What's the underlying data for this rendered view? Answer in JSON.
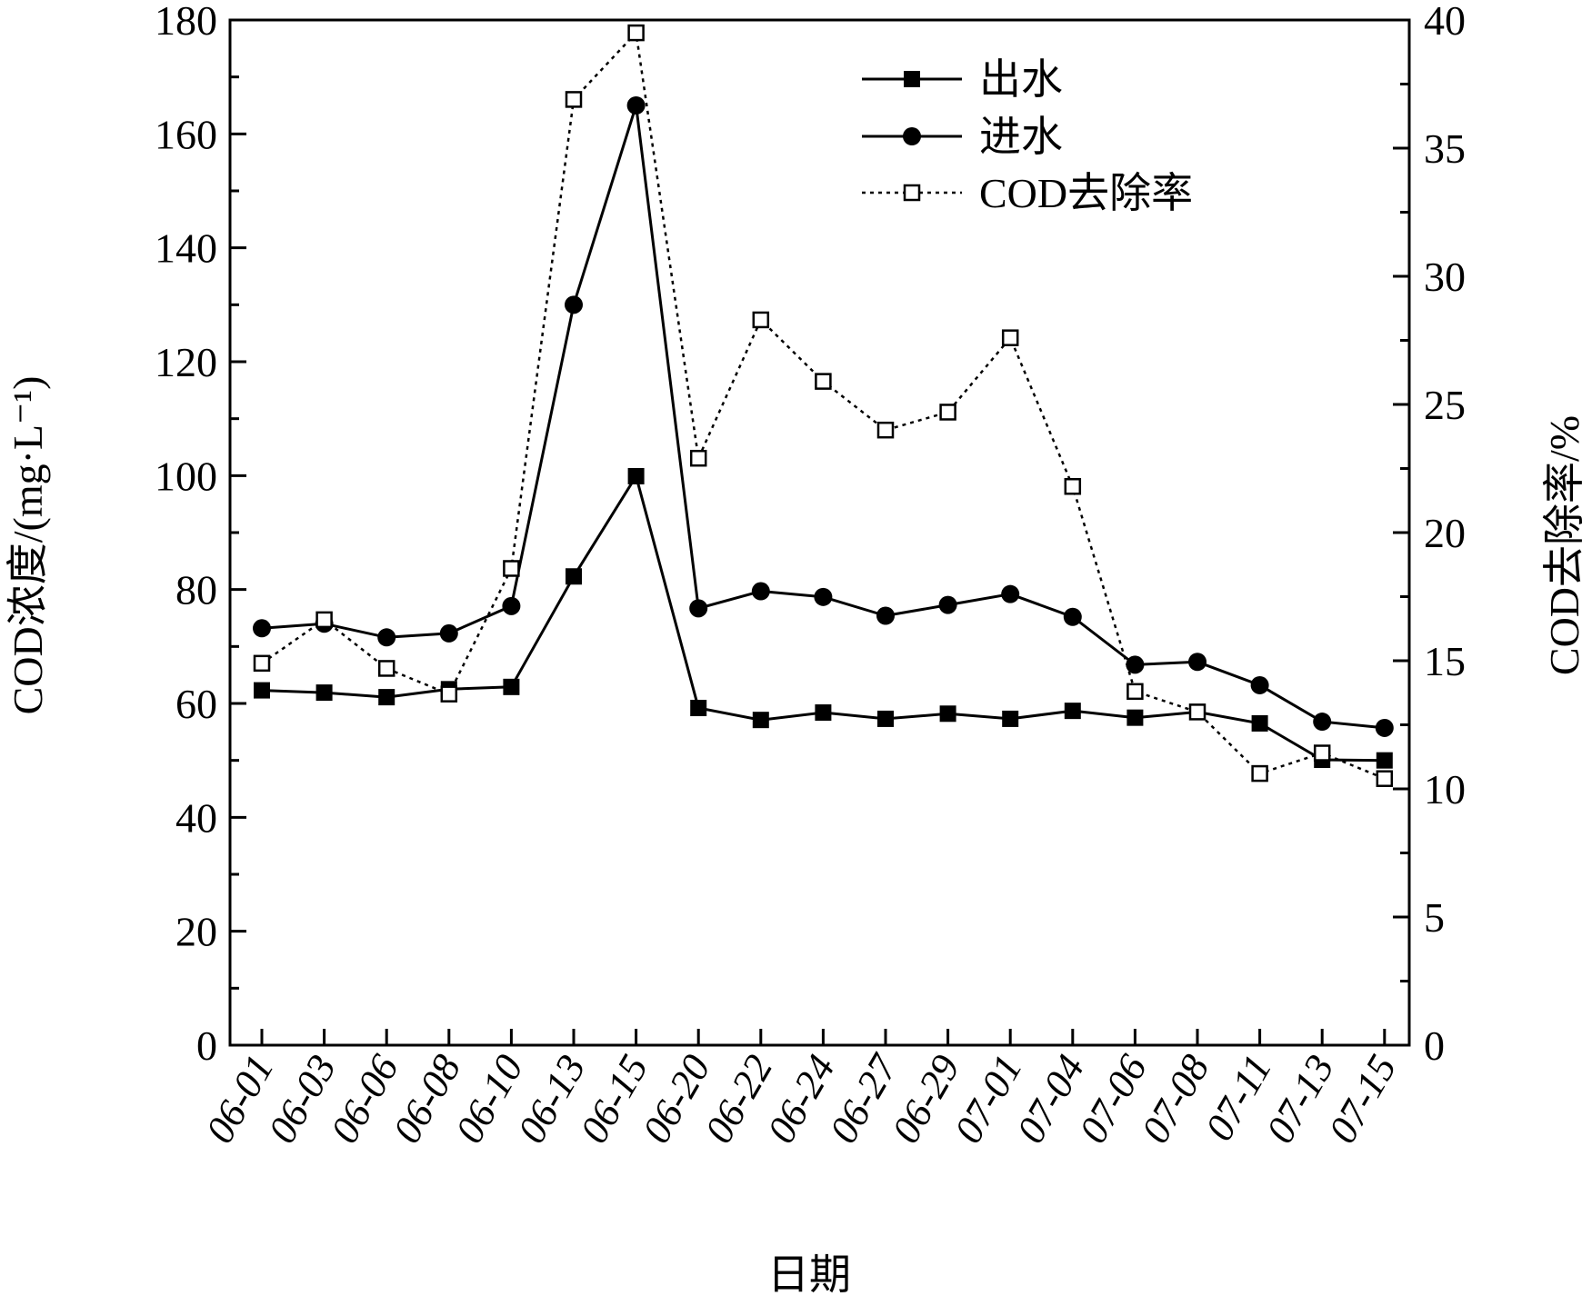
{
  "chart_data": {
    "type": "line",
    "title": "",
    "xlabel": "日期",
    "ylabel_left": "COD浓度/(mg·L⁻¹)",
    "ylabel_right": "COD去除率/%",
    "categories": [
      "06-01",
      "06-03",
      "06-06",
      "06-08",
      "06-10",
      "06-13",
      "06-15",
      "06-20",
      "06-22",
      "06-24",
      "06-27",
      "06-29",
      "07-01",
      "07-04",
      "07-06",
      "07-08",
      "07-11",
      "07-13",
      "07-15"
    ],
    "y_left": {
      "min": 0,
      "max": 180,
      "major_step": 20,
      "minor_step": 10,
      "tick_labels": [
        "0",
        "20",
        "40",
        "60",
        "80",
        "100",
        "120",
        "140",
        "160",
        "180"
      ]
    },
    "y_right": {
      "min": 0,
      "max": 40,
      "major_step": 5,
      "minor_step": 2.5,
      "tick_labels": [
        "0",
        "5",
        "10",
        "15",
        "20",
        "25",
        "30",
        "35",
        "40"
      ]
    },
    "legend_position": "top-right",
    "grid": false,
    "series": [
      {
        "name": "出水",
        "axis": "left",
        "marker": "filled-square",
        "line": "solid",
        "values": [
          62.3,
          61.9,
          61.1,
          62.5,
          62.9,
          82.3,
          99.9,
          59.2,
          57.1,
          58.4,
          57.3,
          58.2,
          57.3,
          58.7,
          57.5,
          58.5,
          56.5,
          50.1,
          50.0
        ]
      },
      {
        "name": "进水",
        "axis": "left",
        "marker": "filled-circle",
        "line": "solid",
        "values": [
          73.2,
          74.0,
          71.6,
          72.3,
          77.1,
          130.0,
          165.0,
          76.7,
          79.7,
          78.7,
          75.4,
          77.3,
          79.2,
          75.2,
          66.8,
          67.3,
          63.2,
          56.8,
          55.7
        ]
      },
      {
        "name": "COD去除率",
        "axis": "right",
        "marker": "open-square",
        "line": "dotted",
        "values": [
          14.9,
          16.6,
          14.7,
          13.7,
          18.6,
          36.9,
          39.5,
          22.9,
          28.3,
          25.9,
          24.0,
          24.7,
          27.6,
          21.8,
          13.8,
          13.0,
          10.6,
          11.4,
          10.4
        ]
      }
    ]
  }
}
